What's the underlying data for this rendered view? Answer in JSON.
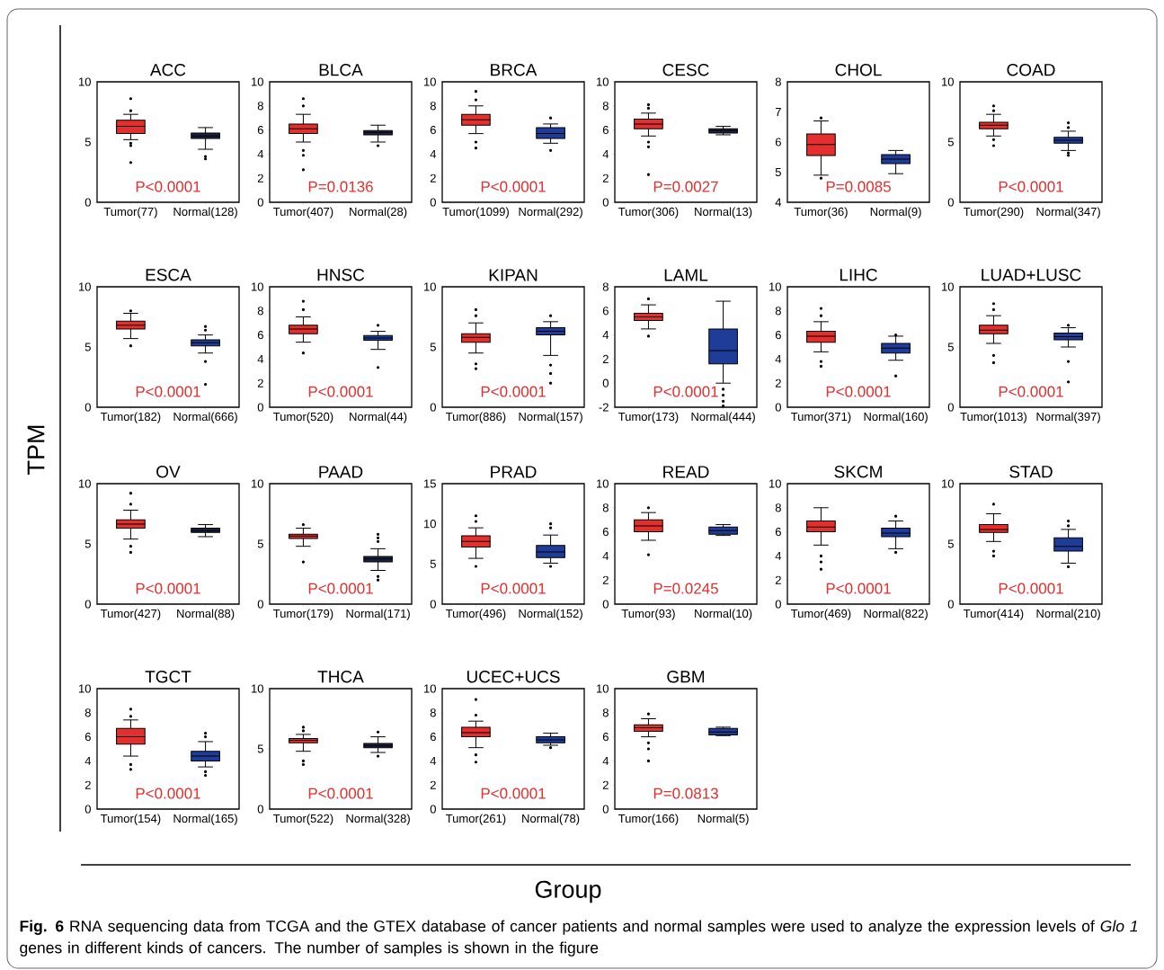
{
  "chart_data": [
    {
      "type": "box",
      "title": "ACC",
      "categories": [
        "Tumor(77)",
        "Normal(128)"
      ],
      "colors": [
        "#e3302f",
        "#1c2340"
      ],
      "ylim": [
        0,
        10
      ],
      "yticks": [
        0,
        5,
        10
      ],
      "annotations": [
        "P<0.0001"
      ],
      "boxes": [
        {
          "low": 5.2,
          "q1": 5.7,
          "median": 6.3,
          "q3": 6.8,
          "high": 7.3,
          "outliers": [
            3.3,
            4.7,
            4.9,
            7.6,
            8.6
          ]
        },
        {
          "low": 4.4,
          "q1": 5.3,
          "median": 5.5,
          "q3": 5.75,
          "high": 6.2,
          "outliers": [
            3.6,
            3.8
          ]
        }
      ]
    },
    {
      "type": "box",
      "title": "BLCA",
      "categories": [
        "Tumor(407)",
        "Normal(28)"
      ],
      "colors": [
        "#e3302f",
        "#1c2340"
      ],
      "ylim": [
        0,
        10
      ],
      "yticks": [
        0,
        2,
        4,
        6,
        8,
        10
      ],
      "annotations": [
        "P=0.0136"
      ],
      "boxes": [
        {
          "low": 5.0,
          "q1": 5.7,
          "median": 6.1,
          "q3": 6.5,
          "high": 7.3,
          "outliers": [
            2.7,
            3.9,
            4.3,
            8.0,
            8.6
          ]
        },
        {
          "low": 5.0,
          "q1": 5.6,
          "median": 5.8,
          "q3": 5.95,
          "high": 6.4,
          "outliers": [
            4.7
          ]
        }
      ]
    },
    {
      "type": "box",
      "title": "BRCA",
      "categories": [
        "Tumor(1099)",
        "Normal(292)"
      ],
      "colors": [
        "#e3302f",
        "#1f3c99"
      ],
      "ylim": [
        0,
        10
      ],
      "yticks": [
        0,
        2,
        4,
        6,
        8,
        10
      ],
      "annotations": [
        "P<0.0001"
      ],
      "boxes": [
        {
          "low": 5.7,
          "q1": 6.4,
          "median": 6.85,
          "q3": 7.3,
          "high": 8.0,
          "outliers": [
            4.5,
            5.0,
            8.5,
            9.2
          ]
        },
        {
          "low": 4.9,
          "q1": 5.3,
          "median": 5.7,
          "q3": 6.2,
          "high": 6.5,
          "outliers": [
            4.3,
            7.0
          ]
        }
      ]
    },
    {
      "type": "box",
      "title": "CESC",
      "categories": [
        "Tumor(306)",
        "Normal(13)"
      ],
      "colors": [
        "#e3302f",
        "#1c2340"
      ],
      "ylim": [
        0,
        10
      ],
      "yticks": [
        0,
        2,
        4,
        6,
        8,
        10
      ],
      "annotations": [
        "P=0.0027"
      ],
      "boxes": [
        {
          "low": 5.5,
          "q1": 6.1,
          "median": 6.5,
          "q3": 6.9,
          "high": 7.4,
          "outliers": [
            2.3,
            4.6,
            5.0,
            7.8,
            8.1
          ]
        },
        {
          "low": 5.6,
          "q1": 5.75,
          "median": 5.95,
          "q3": 6.1,
          "high": 6.3
        }
      ]
    },
    {
      "type": "box",
      "title": "CHOL",
      "categories": [
        "Tumor(36)",
        "Normal(9)"
      ],
      "colors": [
        "#e3302f",
        "#1f3c99"
      ],
      "ylim": [
        4,
        8
      ],
      "yticks": [
        4,
        5,
        6,
        7,
        8
      ],
      "annotations": [
        "P=0.0085"
      ],
      "boxes": [
        {
          "low": 4.9,
          "q1": 5.55,
          "median": 5.92,
          "q3": 6.27,
          "high": 6.7,
          "outliers": [
            4.8,
            6.8
          ]
        },
        {
          "low": 4.95,
          "q1": 5.28,
          "median": 5.43,
          "q3": 5.58,
          "high": 5.72
        }
      ]
    },
    {
      "type": "box",
      "title": "COAD",
      "categories": [
        "Tumor(290)",
        "Normal(347)"
      ],
      "colors": [
        "#e3302f",
        "#1f3c99"
      ],
      "ylim": [
        0,
        10
      ],
      "yticks": [
        0,
        5,
        10
      ],
      "annotations": [
        "P<0.0001"
      ],
      "boxes": [
        {
          "low": 5.5,
          "q1": 6.1,
          "median": 6.4,
          "q3": 6.65,
          "high": 7.3,
          "outliers": [
            4.7,
            5.2,
            7.6,
            8.0
          ]
        },
        {
          "low": 4.3,
          "q1": 4.9,
          "median": 5.15,
          "q3": 5.4,
          "high": 5.9,
          "outliers": [
            3.9,
            4.1,
            6.2,
            6.6
          ]
        }
      ]
    },
    {
      "type": "box",
      "title": "ESCA",
      "categories": [
        "Tumor(182)",
        "Normal(666)"
      ],
      "colors": [
        "#e3302f",
        "#1f3c99"
      ],
      "ylim": [
        0,
        10
      ],
      "yticks": [
        0,
        5,
        10
      ],
      "annotations": [
        "P<0.0001"
      ],
      "boxes": [
        {
          "low": 5.7,
          "q1": 6.5,
          "median": 6.8,
          "q3": 7.15,
          "high": 7.8,
          "outliers": [
            5.1,
            8.0
          ]
        },
        {
          "low": 4.5,
          "q1": 5.1,
          "median": 5.35,
          "q3": 5.6,
          "high": 6.0,
          "outliers": [
            1.9,
            3.8,
            6.4,
            6.7
          ]
        }
      ]
    },
    {
      "type": "box",
      "title": "HNSC",
      "categories": [
        "Tumor(520)",
        "Normal(44)"
      ],
      "colors": [
        "#e3302f",
        "#1f3c99"
      ],
      "ylim": [
        0,
        10
      ],
      "yticks": [
        0,
        2,
        4,
        6,
        8,
        10
      ],
      "annotations": [
        "P<0.0001"
      ],
      "boxes": [
        {
          "low": 5.4,
          "q1": 6.1,
          "median": 6.5,
          "q3": 6.8,
          "high": 7.5,
          "outliers": [
            4.5,
            8.1,
            8.8
          ]
        },
        {
          "low": 4.8,
          "q1": 5.55,
          "median": 5.75,
          "q3": 5.95,
          "high": 6.3,
          "outliers": [
            3.3,
            6.8
          ]
        }
      ]
    },
    {
      "type": "box",
      "title": "KIPAN",
      "categories": [
        "Tumor(886)",
        "Normal(157)"
      ],
      "colors": [
        "#e3302f",
        "#1f3c99"
      ],
      "ylim": [
        0,
        10
      ],
      "yticks": [
        0,
        5,
        10
      ],
      "annotations": [
        "P<0.0001"
      ],
      "boxes": [
        {
          "low": 4.5,
          "q1": 5.4,
          "median": 5.8,
          "q3": 6.1,
          "high": 7.0,
          "outliers": [
            3.2,
            3.6,
            7.6,
            8.1
          ]
        },
        {
          "low": 4.3,
          "q1": 6.0,
          "median": 6.3,
          "q3": 6.6,
          "high": 7.1,
          "outliers": [
            2.0,
            2.8,
            3.5,
            7.6
          ]
        }
      ]
    },
    {
      "type": "box",
      "title": "LAML",
      "categories": [
        "Tumor(173)",
        "Normal(444)"
      ],
      "colors": [
        "#e3302f",
        "#1f3c99"
      ],
      "ylim": [
        -2,
        8
      ],
      "yticks": [
        -2,
        0,
        2,
        4,
        6,
        8
      ],
      "annotations": [
        "P<0.0001"
      ],
      "boxes": [
        {
          "low": 4.5,
          "q1": 5.2,
          "median": 5.5,
          "q3": 5.8,
          "high": 6.5,
          "outliers": [
            3.9,
            7.0
          ]
        },
        {
          "low": 0.0,
          "q1": 1.6,
          "median": 2.7,
          "q3": 4.5,
          "high": 6.8,
          "outliers": [
            -0.5,
            -1.0,
            -1.5,
            -1.9
          ]
        }
      ]
    },
    {
      "type": "box",
      "title": "LIHC",
      "categories": [
        "Tumor(371)",
        "Normal(160)"
      ],
      "colors": [
        "#e3302f",
        "#1f3c99"
      ],
      "ylim": [
        0,
        10
      ],
      "yticks": [
        0,
        2,
        4,
        6,
        8,
        10
      ],
      "annotations": [
        "P<0.0001"
      ],
      "boxes": [
        {
          "low": 4.6,
          "q1": 5.4,
          "median": 5.9,
          "q3": 6.3,
          "high": 7.1,
          "outliers": [
            3.4,
            3.8,
            7.6,
            8.2
          ]
        },
        {
          "low": 3.9,
          "q1": 4.5,
          "median": 4.9,
          "q3": 5.3,
          "high": 5.9,
          "outliers": [
            2.6,
            6.0
          ]
        }
      ]
    },
    {
      "type": "box",
      "title": "LUAD+LUSC",
      "categories": [
        "Tumor(1013)",
        "Normal(397)"
      ],
      "colors": [
        "#e3302f",
        "#1f3c99"
      ],
      "ylim": [
        0,
        10
      ],
      "yticks": [
        0,
        5,
        10
      ],
      "annotations": [
        "P<0.0001"
      ],
      "boxes": [
        {
          "low": 5.3,
          "q1": 6.1,
          "median": 6.4,
          "q3": 6.8,
          "high": 7.6,
          "outliers": [
            3.7,
            4.3,
            8.1,
            8.6
          ]
        },
        {
          "low": 5.0,
          "q1": 5.6,
          "median": 5.85,
          "q3": 6.15,
          "high": 6.6,
          "outliers": [
            2.1,
            3.8,
            6.8
          ]
        }
      ]
    },
    {
      "type": "box",
      "title": "OV",
      "categories": [
        "Tumor(427)",
        "Normal(88)"
      ],
      "colors": [
        "#e3302f",
        "#1c2340"
      ],
      "ylim": [
        0,
        10
      ],
      "yticks": [
        0,
        5,
        10
      ],
      "annotations": [
        "P<0.0001"
      ],
      "boxes": [
        {
          "low": 5.4,
          "q1": 6.3,
          "median": 6.65,
          "q3": 7.0,
          "high": 7.8,
          "outliers": [
            4.3,
            4.8,
            8.3,
            9.2
          ]
        },
        {
          "low": 5.6,
          "q1": 5.95,
          "median": 6.1,
          "q3": 6.3,
          "high": 6.6
        }
      ]
    },
    {
      "type": "box",
      "title": "PAAD",
      "categories": [
        "Tumor(179)",
        "Normal(171)"
      ],
      "colors": [
        "#e3302f",
        "#1c2340"
      ],
      "ylim": [
        0,
        10
      ],
      "yticks": [
        0,
        5,
        10
      ],
      "annotations": [
        "P<0.0001"
      ],
      "boxes": [
        {
          "low": 4.8,
          "q1": 5.45,
          "median": 5.65,
          "q3": 5.8,
          "high": 6.3,
          "outliers": [
            3.5,
            6.6
          ]
        },
        {
          "low": 2.8,
          "q1": 3.5,
          "median": 3.75,
          "q3": 3.95,
          "high": 4.6,
          "outliers": [
            2.0,
            2.3,
            5.2,
            5.5,
            5.8
          ]
        }
      ]
    },
    {
      "type": "box",
      "title": "PRAD",
      "categories": [
        "Tumor(496)",
        "Normal(152)"
      ],
      "colors": [
        "#e3302f",
        "#1f3c99"
      ],
      "ylim": [
        0,
        15
      ],
      "yticks": [
        0,
        5,
        10,
        15
      ],
      "annotations": [
        "P<0.0001"
      ],
      "boxes": [
        {
          "low": 5.7,
          "q1": 7.1,
          "median": 7.8,
          "q3": 8.5,
          "high": 9.5,
          "outliers": [
            4.7,
            10.3,
            11
          ]
        },
        {
          "low": 5.1,
          "q1": 5.8,
          "median": 6.5,
          "q3": 7.3,
          "high": 8.6,
          "outliers": [
            4.7,
            9.5,
            10
          ]
        }
      ]
    },
    {
      "type": "box",
      "title": "READ",
      "categories": [
        "Tumor(93)",
        "Normal(10)"
      ],
      "colors": [
        "#e3302f",
        "#1f3c99"
      ],
      "ylim": [
        0,
        10
      ],
      "yticks": [
        0,
        2,
        4,
        6,
        8,
        10
      ],
      "annotations": [
        "P=0.0245"
      ],
      "boxes": [
        {
          "low": 5.3,
          "q1": 6.0,
          "median": 6.5,
          "q3": 7.0,
          "high": 7.6,
          "outliers": [
            4.1,
            8.0
          ]
        },
        {
          "low": 5.7,
          "q1": 5.8,
          "median": 6.1,
          "q3": 6.4,
          "high": 6.6
        }
      ]
    },
    {
      "type": "box",
      "title": "SKCM",
      "categories": [
        "Tumor(469)",
        "Normal(822)"
      ],
      "colors": [
        "#e3302f",
        "#1f3c99"
      ],
      "ylim": [
        0,
        10
      ],
      "yticks": [
        0,
        2,
        4,
        6,
        8,
        10
      ],
      "annotations": [
        "P<0.0001"
      ],
      "boxes": [
        {
          "low": 4.9,
          "q1": 6.0,
          "median": 6.4,
          "q3": 6.9,
          "high": 8.0,
          "outliers": [
            2.9,
            3.5,
            4.0
          ]
        },
        {
          "low": 4.6,
          "q1": 5.6,
          "median": 5.9,
          "q3": 6.3,
          "high": 6.9,
          "outliers": [
            4.3,
            7.3
          ]
        }
      ]
    },
    {
      "type": "box",
      "title": "STAD",
      "categories": [
        "Tumor(414)",
        "Normal(210)"
      ],
      "colors": [
        "#e3302f",
        "#1f3c99"
      ],
      "ylim": [
        0,
        10
      ],
      "yticks": [
        0,
        5,
        10
      ],
      "annotations": [
        "P<0.0001"
      ],
      "boxes": [
        {
          "low": 5.2,
          "q1": 5.95,
          "median": 6.2,
          "q3": 6.6,
          "high": 7.5,
          "outliers": [
            4.0,
            4.4,
            8.3
          ]
        },
        {
          "low": 3.4,
          "q1": 4.4,
          "median": 4.8,
          "q3": 5.5,
          "high": 6.2,
          "outliers": [
            3.1,
            6.5,
            6.9
          ]
        }
      ]
    },
    {
      "type": "box",
      "title": "TGCT",
      "categories": [
        "Tumor(154)",
        "Normal(165)"
      ],
      "colors": [
        "#e3302f",
        "#1f3c99"
      ],
      "ylim": [
        0,
        10
      ],
      "yticks": [
        0,
        2,
        4,
        6,
        8,
        10
      ],
      "annotations": [
        "P<0.0001"
      ],
      "boxes": [
        {
          "low": 4.4,
          "q1": 5.4,
          "median": 6.0,
          "q3": 6.7,
          "high": 7.4,
          "outliers": [
            3.3,
            3.7,
            7.7,
            8.3
          ]
        },
        {
          "low": 3.5,
          "q1": 4.0,
          "median": 4.4,
          "q3": 4.8,
          "high": 5.6,
          "outliers": [
            2.8,
            3.1,
            6.0,
            6.3
          ]
        }
      ]
    },
    {
      "type": "box",
      "title": "THCA",
      "categories": [
        "Tumor(522)",
        "Normal(328)"
      ],
      "colors": [
        "#e3302f",
        "#1c2340"
      ],
      "ylim": [
        0,
        10
      ],
      "yticks": [
        0,
        5,
        10
      ],
      "annotations": [
        "P<0.0001"
      ],
      "boxes": [
        {
          "low": 4.8,
          "q1": 5.5,
          "median": 5.7,
          "q3": 5.85,
          "high": 6.2,
          "outliers": [
            3.7,
            4.0,
            6.5,
            6.8
          ]
        },
        {
          "low": 4.7,
          "q1": 5.1,
          "median": 5.25,
          "q3": 5.45,
          "high": 6.0,
          "outliers": [
            4.4,
            6.4
          ]
        }
      ]
    },
    {
      "type": "box",
      "title": "UCEC+UCS",
      "categories": [
        "Tumor(261)",
        "Normal(78)"
      ],
      "colors": [
        "#e3302f",
        "#1f3c99"
      ],
      "ylim": [
        0,
        10
      ],
      "yticks": [
        0,
        2,
        4,
        6,
        8,
        10
      ],
      "annotations": [
        "P<0.0001"
      ],
      "boxes": [
        {
          "low": 5.1,
          "q1": 6.0,
          "median": 6.35,
          "q3": 6.8,
          "high": 7.3,
          "outliers": [
            3.9,
            4.5,
            7.8,
            9.1
          ]
        },
        {
          "low": 5.3,
          "q1": 5.5,
          "median": 5.75,
          "q3": 6.0,
          "high": 6.3,
          "outliers": [
            5.1
          ]
        }
      ]
    },
    {
      "type": "box",
      "title": "GBM",
      "categories": [
        "Tumor(166)",
        "Normal(5)"
      ],
      "colors": [
        "#e3302f",
        "#1f3c99"
      ],
      "ylim": [
        0,
        10
      ],
      "yticks": [
        0,
        2,
        4,
        6,
        8,
        10
      ],
      "annotations": [
        "P=0.0813"
      ],
      "boxes": [
        {
          "low": 6.0,
          "q1": 6.45,
          "median": 6.75,
          "q3": 7.0,
          "high": 7.5,
          "outliers": [
            4.0,
            5.0,
            5.5,
            7.9
          ]
        },
        {
          "low": 6.1,
          "q1": 6.15,
          "median": 6.4,
          "q3": 6.7,
          "high": 6.8
        }
      ]
    },
    {
      "type": "other",
      "ylabel": "TPM",
      "xlabel": "Group",
      "annotations": [
        "**Fig. 6** RNA sequencing data from TCGA and the GTEX database of cancer patients and normal samples were used to analyze the expression levels of *Glo 1* genes in different kinds of cancers. The number of samples is shown in the figure"
      ]
    }
  ]
}
